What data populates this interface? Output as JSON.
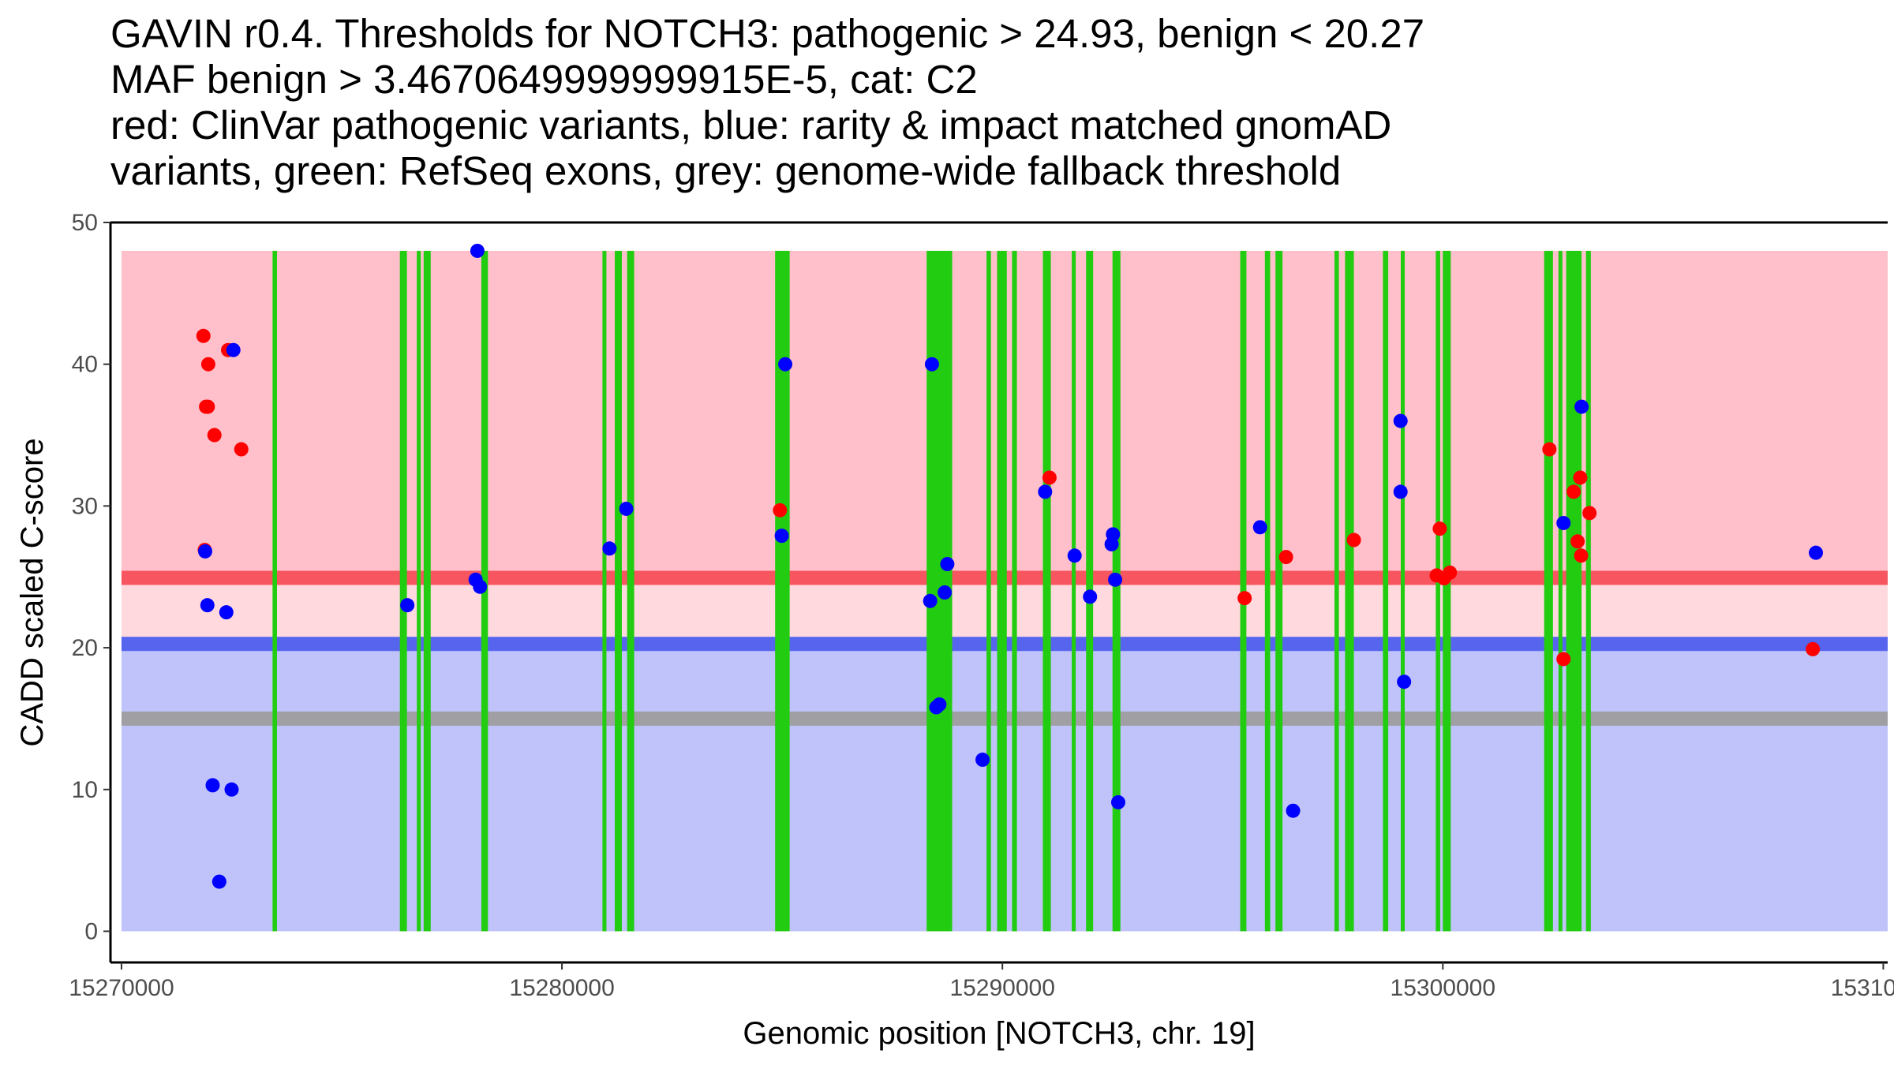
{
  "title_lines": [
    "GAVIN r0.4. Thresholds for NOTCH3: pathogenic > 24.93, benign < 20.27",
    "MAF benign > 3.4670649999999915E-5, cat: C2",
    "red: ClinVar pathogenic variants, blue: rarity & impact matched gnomAD",
    "variants, green: RefSeq exons, grey: genome-wide fallback threshold"
  ],
  "chart_data": {
    "type": "scatter",
    "xlabel": "Genomic position [NOTCH3, chr. 19]",
    "ylabel": "CADD scaled C-score",
    "xlim": [
      15269750,
      15310100
    ],
    "ylim": [
      -2.2,
      50
    ],
    "x_ticks": [
      15270000,
      15280000,
      15290000,
      15300000,
      15310000
    ],
    "x_tick_labels": [
      "15270000",
      "15280000",
      "15290000",
      "15300000",
      "15310000"
    ],
    "y_ticks": [
      0,
      10,
      20,
      30,
      40,
      50
    ],
    "y_tick_labels": [
      "0",
      "10",
      "20",
      "30",
      "40",
      "50"
    ],
    "grid": false,
    "colors": {
      "pathogenic_region": "#ffc0cb",
      "intermediate_region": "#ffd9de",
      "benign_region": "#bfc3fa",
      "pathogenic_line": "#f7555f",
      "benign_line": "#5765ee",
      "fallback_line": "#a0a0a4",
      "exon": "#22cc11",
      "clinvar_point": "#ff0000",
      "gnomad_point": "#0000ff"
    },
    "regions": [
      {
        "name": "pathogenic",
        "y0": 24.93,
        "y1": 48,
        "color": "#ffc0cb"
      },
      {
        "name": "intermediate",
        "y0": 20.27,
        "y1": 24.93,
        "color": "#ffd9de"
      },
      {
        "name": "benign",
        "y0": 0,
        "y1": 20.27,
        "color": "#bfc3fa"
      }
    ],
    "threshold_lines": [
      {
        "name": "pathogenic threshold",
        "y": 24.93,
        "color": "#f7555f"
      },
      {
        "name": "benign threshold",
        "y": 20.27,
        "color": "#5765ee"
      },
      {
        "name": "genome-wide fallback",
        "y": 15.0,
        "color": "#a0a0a4"
      }
    ],
    "exons": [
      {
        "start": 15273430,
        "end": 15273530
      },
      {
        "start": 15276320,
        "end": 15276480
      },
      {
        "start": 15276720,
        "end": 15276780
      },
      {
        "start": 15276860,
        "end": 15277020
      },
      {
        "start": 15278170,
        "end": 15278320
      },
      {
        "start": 15280920,
        "end": 15281010
      },
      {
        "start": 15281200,
        "end": 15281360
      },
      {
        "start": 15281480,
        "end": 15281640
      },
      {
        "start": 15284840,
        "end": 15285170
      },
      {
        "start": 15288280,
        "end": 15288860
      },
      {
        "start": 15289640,
        "end": 15289740
      },
      {
        "start": 15289880,
        "end": 15290100
      },
      {
        "start": 15290220,
        "end": 15290330
      },
      {
        "start": 15290920,
        "end": 15291100
      },
      {
        "start": 15291580,
        "end": 15291660
      },
      {
        "start": 15291900,
        "end": 15292060
      },
      {
        "start": 15292500,
        "end": 15292680
      },
      {
        "start": 15295400,
        "end": 15295540
      },
      {
        "start": 15295960,
        "end": 15296080
      },
      {
        "start": 15296200,
        "end": 15296360
      },
      {
        "start": 15297540,
        "end": 15297640
      },
      {
        "start": 15297780,
        "end": 15297980
      },
      {
        "start": 15298640,
        "end": 15298760
      },
      {
        "start": 15299050,
        "end": 15299130
      },
      {
        "start": 15299840,
        "end": 15299940
      },
      {
        "start": 15300000,
        "end": 15300180
      },
      {
        "start": 15302300,
        "end": 15302500
      },
      {
        "start": 15302640,
        "end": 15302700
      },
      {
        "start": 15302800,
        "end": 15303150
      },
      {
        "start": 15303250,
        "end": 15303360
      }
    ],
    "series": [
      {
        "name": "ClinVar pathogenic variants",
        "color": "#ff0000",
        "points": [
          [
            15271860,
            42.0
          ],
          [
            15271970,
            40.0
          ],
          [
            15271920,
            37.0
          ],
          [
            15271960,
            37.0
          ],
          [
            15272110,
            35.0
          ],
          [
            15272420,
            41.0
          ],
          [
            15272720,
            34.0
          ],
          [
            15271890,
            26.9
          ],
          [
            15284950,
            29.7
          ],
          [
            15291070,
            32.0
          ],
          [
            15295500,
            23.5
          ],
          [
            15296440,
            26.4
          ],
          [
            15297980,
            27.6
          ],
          [
            15299930,
            28.4
          ],
          [
            15299860,
            25.1
          ],
          [
            15300030,
            24.9
          ],
          [
            15300160,
            25.3
          ],
          [
            15302420,
            34.0
          ],
          [
            15302740,
            19.2
          ],
          [
            15302970,
            31.0
          ],
          [
            15303120,
            32.0
          ],
          [
            15303060,
            27.5
          ],
          [
            15303140,
            26.5
          ],
          [
            15303330,
            29.5
          ],
          [
            15308400,
            19.9
          ]
        ]
      },
      {
        "name": "rarity & impact matched gnomAD variants",
        "color": "#0000ff",
        "points": [
          [
            15272540,
            41.0
          ],
          [
            15271900,
            26.8
          ],
          [
            15271950,
            23.0
          ],
          [
            15272380,
            22.5
          ],
          [
            15272070,
            10.3
          ],
          [
            15272500,
            10.0
          ],
          [
            15272220,
            3.5
          ],
          [
            15276490,
            23.0
          ],
          [
            15278040,
            24.8
          ],
          [
            15278140,
            24.3
          ],
          [
            15278080,
            48.0
          ],
          [
            15281080,
            27.0
          ],
          [
            15281460,
            29.8
          ],
          [
            15285070,
            40.0
          ],
          [
            15284990,
            27.9
          ],
          [
            15288400,
            40.0
          ],
          [
            15288360,
            23.3
          ],
          [
            15288690,
            23.9
          ],
          [
            15288750,
            25.9
          ],
          [
            15288500,
            15.8
          ],
          [
            15288570,
            16.0
          ],
          [
            15289550,
            12.1
          ],
          [
            15290970,
            31.0
          ],
          [
            15291640,
            26.5
          ],
          [
            15291990,
            23.6
          ],
          [
            15292480,
            27.3
          ],
          [
            15292510,
            28.0
          ],
          [
            15292560,
            24.8
          ],
          [
            15292630,
            9.1
          ],
          [
            15295850,
            28.5
          ],
          [
            15296600,
            8.5
          ],
          [
            15299040,
            36.0
          ],
          [
            15299040,
            31.0
          ],
          [
            15299120,
            17.6
          ],
          [
            15302740,
            28.8
          ],
          [
            15303150,
            37.0
          ],
          [
            15308470,
            26.7
          ]
        ]
      }
    ]
  }
}
